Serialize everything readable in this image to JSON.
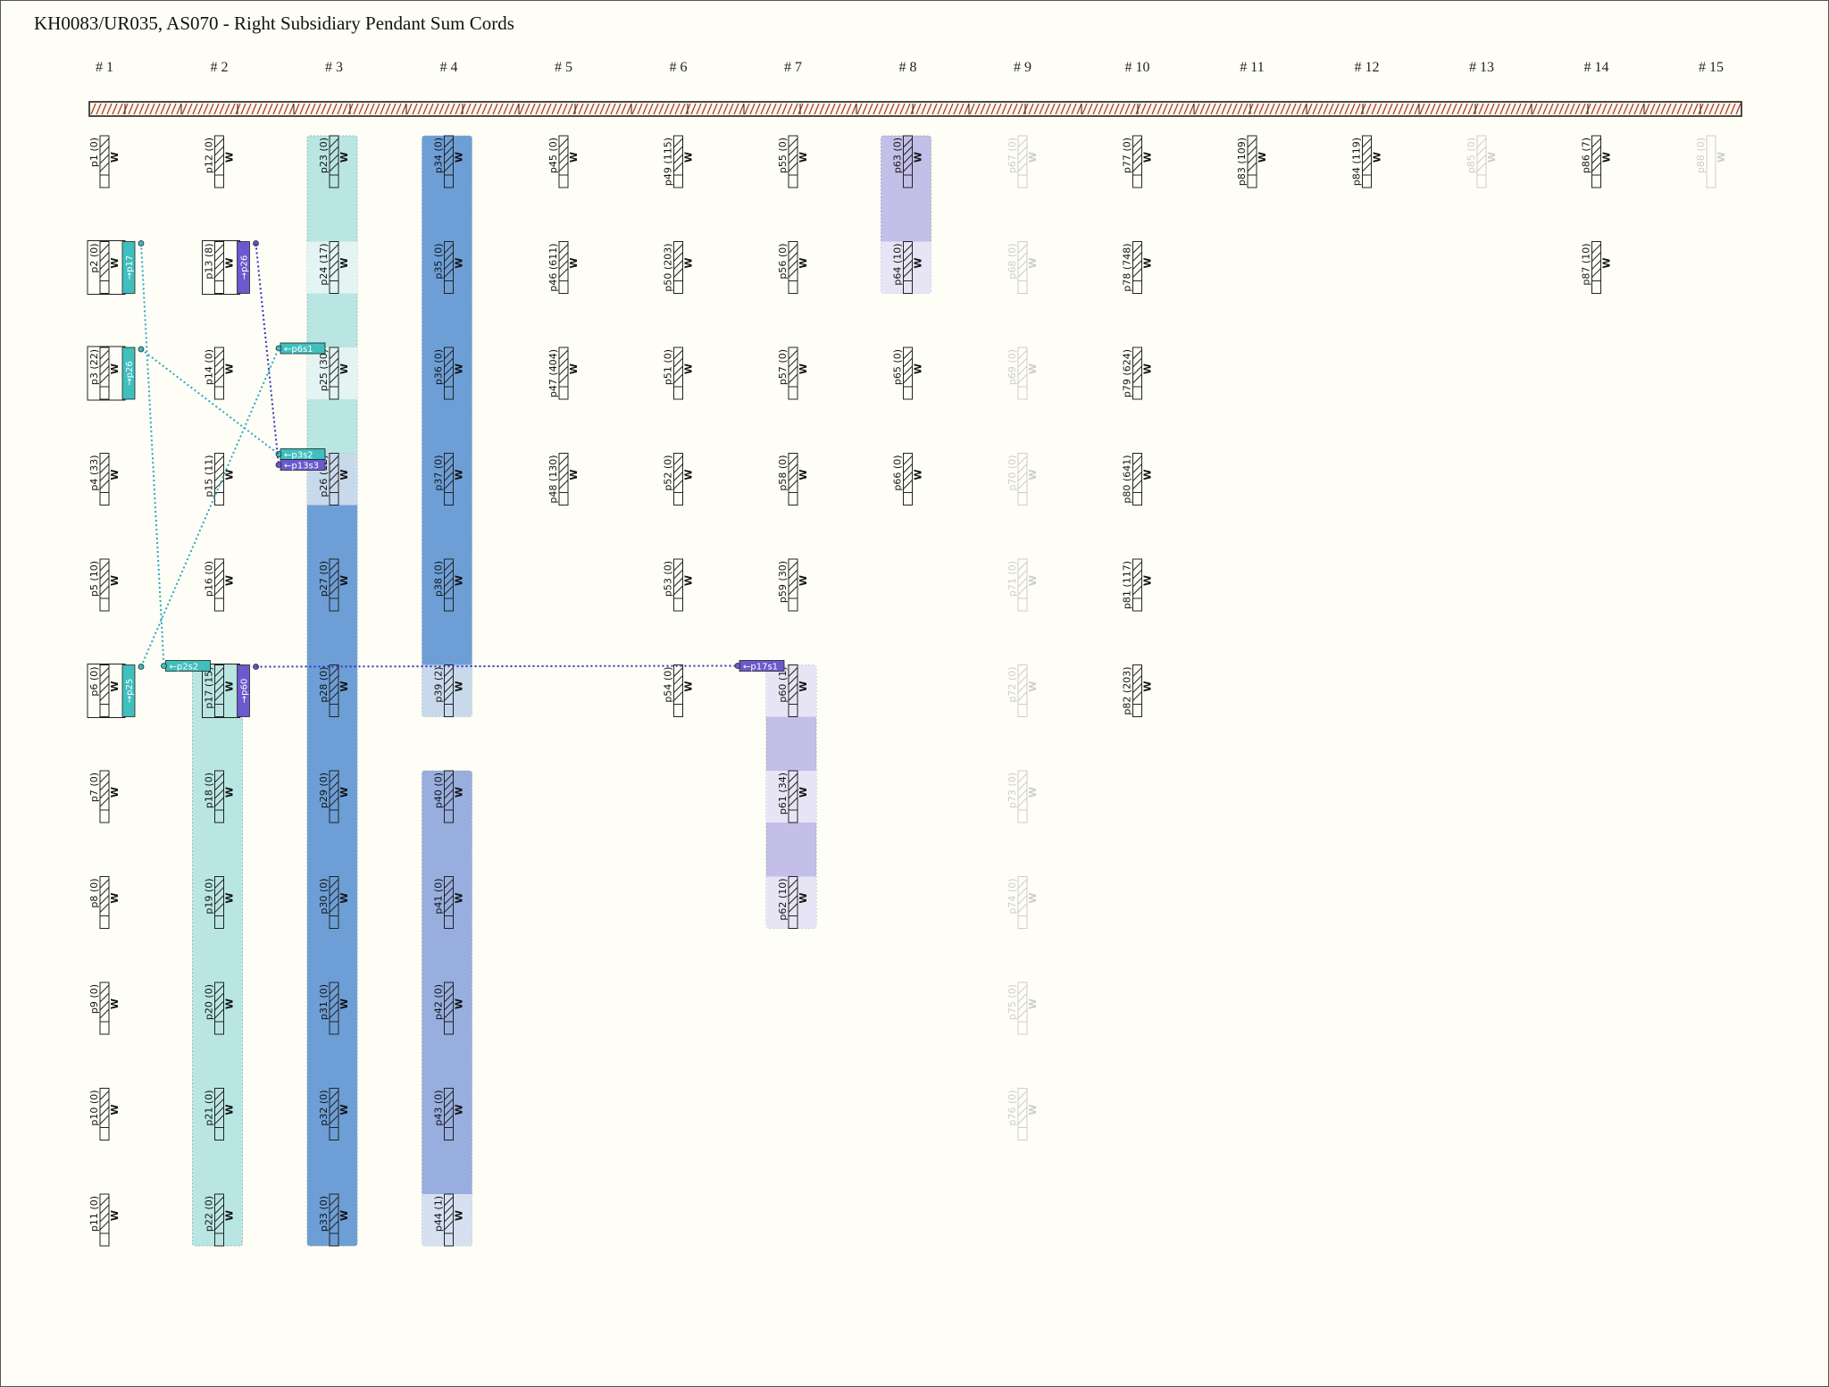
{
  "title": "KH0083/UR035, AS070 - Right Subsidiary Pendant Sum Cords",
  "columns": [
    {
      "label": "# 1",
      "cords": [
        {
          "l": "p1 (0)"
        },
        {
          "l": "p2 (0)",
          "t": "→p17",
          "tc": "teal"
        },
        {
          "l": "p3 (22)",
          "t": "→p26",
          "tc": "teal"
        },
        {
          "l": "p4 (33)"
        },
        {
          "l": "p5 (10)"
        },
        {
          "l": "p6 (0)",
          "t": "→p25",
          "tc": "teal"
        },
        {
          "l": "p7 (0)"
        },
        {
          "l": "p8 (0)"
        },
        {
          "l": "p9 (0)"
        },
        {
          "l": "p10 (0)"
        },
        {
          "l": "p11 (0)"
        }
      ]
    },
    {
      "label": "# 2",
      "cords": [
        {
          "l": "p12 (0)"
        },
        {
          "l": "p13 (8)",
          "t": "→p26",
          "tc": "purple"
        },
        {
          "l": "p14 (0)"
        },
        {
          "l": "p15 (11)"
        },
        {
          "l": "p16 (0)"
        },
        {
          "l": "p17 (15)",
          "t": "→p60",
          "tc": "purple"
        },
        {
          "l": "p18 (0)"
        },
        {
          "l": "p19 (0)"
        },
        {
          "l": "p20 (0)"
        },
        {
          "l": "p21 (0)"
        },
        {
          "l": "p22 (0)"
        }
      ]
    },
    {
      "label": "# 3",
      "cords": [
        {
          "l": "p23 (0)"
        },
        {
          "l": "p24 (17)"
        },
        {
          "l": "p25 (30)"
        },
        {
          "l": "p26 (12)"
        },
        {
          "l": "p27 (0)"
        },
        {
          "l": "p28 (0)"
        },
        {
          "l": "p29 (0)"
        },
        {
          "l": "p30 (0)"
        },
        {
          "l": "p31 (0)"
        },
        {
          "l": "p32 (0)"
        },
        {
          "l": "p33 (0)"
        }
      ]
    },
    {
      "label": "# 4",
      "cords": [
        {
          "l": "p34 (0)"
        },
        {
          "l": "p35 (0)"
        },
        {
          "l": "p36 (0)"
        },
        {
          "l": "p37 (0)"
        },
        {
          "l": "p38 (0)"
        },
        {
          "l": "p39 (2)"
        },
        {
          "l": "p40 (0)"
        },
        {
          "l": "p41 (0)"
        },
        {
          "l": "p42 (0)"
        },
        {
          "l": "p43 (0)"
        },
        {
          "l": "p44 (1)"
        }
      ]
    },
    {
      "label": "# 5",
      "cords": [
        {
          "l": "p45 (0)"
        },
        {
          "l": "p46 (611)"
        },
        {
          "l": "p47 (404)"
        },
        {
          "l": "p48 (130)"
        }
      ]
    },
    {
      "label": "# 6",
      "cords": [
        {
          "l": "p49 (115)"
        },
        {
          "l": "p50 (203)"
        },
        {
          "l": "p51 (0)"
        },
        {
          "l": "p52 (0)"
        },
        {
          "l": "p53 (0)"
        },
        {
          "l": "p54 (0)"
        }
      ]
    },
    {
      "label": "# 7",
      "cords": [
        {
          "l": "p55 (0)"
        },
        {
          "l": "p56 (0)"
        },
        {
          "l": "p57 (0)"
        },
        {
          "l": "p58 (0)"
        },
        {
          "l": "p59 (30)"
        },
        {
          "l": "p60 (1)"
        },
        {
          "l": "p61 (34)",
          "r": 7
        },
        {
          "l": "p62 (10)",
          "r": 8
        }
      ]
    },
    {
      "label": "# 8",
      "cords": [
        {
          "l": "p63 (0)"
        },
        {
          "l": "p64 (10)"
        },
        {
          "l": "p65 (0)"
        },
        {
          "l": "p66 (0)"
        }
      ]
    },
    {
      "label": "# 9",
      "faded": true,
      "cords": [
        {
          "l": "p67 (0)"
        },
        {
          "l": "p68 (0)"
        },
        {
          "l": "p69 (0)"
        },
        {
          "l": "p70 (0)"
        },
        {
          "l": "p71 (0)"
        },
        {
          "l": "p72 (0)"
        },
        {
          "l": "p73 (0)"
        },
        {
          "l": "p74 (0)"
        },
        {
          "l": "p75 (0)"
        },
        {
          "l": "p76 (0)"
        }
      ]
    },
    {
      "label": "# 10",
      "cords": [
        {
          "l": "p77 (0)"
        },
        {
          "l": "p78 (748)"
        },
        {
          "l": "p79 (624)"
        },
        {
          "l": "p80 (641)"
        },
        {
          "l": "p81 (117)"
        },
        {
          "l": "p82 (203)"
        }
      ]
    },
    {
      "label": "# 11",
      "cords": [
        {
          "l": "p83 (109)"
        }
      ]
    },
    {
      "label": "# 12",
      "cords": [
        {
          "l": "p84 (119)"
        }
      ]
    },
    {
      "label": "# 13",
      "faded": true,
      "cords": [
        {
          "l": "p85 (0)"
        }
      ]
    },
    {
      "label": "# 14",
      "cords": [
        {
          "l": "p86 (7)"
        },
        {
          "l": "p87 (10)"
        }
      ]
    },
    {
      "label": "# 15",
      "faded": true,
      "blank": true,
      "cords": [
        {
          "l": "p88 (0)"
        }
      ]
    }
  ],
  "w_label": "W",
  "bands": [
    {
      "col": 3,
      "from": 1,
      "to": 11,
      "color": "#b9e6e2"
    },
    {
      "col": 3,
      "from": 4,
      "to": 11,
      "color": "#6d9fd6"
    },
    {
      "col": 2,
      "from": 6,
      "to": 11,
      "color": "#b9e6e2"
    },
    {
      "col": 4,
      "from": 1,
      "to": 6,
      "color": "#6d9fd6"
    },
    {
      "col": 4,
      "from": 7,
      "to": 11,
      "color": "#97aede"
    },
    {
      "col": 7,
      "from": 6,
      "to": 8,
      "color": "#c3bfe8"
    },
    {
      "col": 8,
      "from": 1,
      "to": 2,
      "color": "#c3bfe8"
    }
  ],
  "light_cells": [
    {
      "col": 3,
      "row": 2,
      "color": "#e3f4f2"
    },
    {
      "col": 3,
      "row": 3,
      "color": "#e3f4f2"
    },
    {
      "col": 3,
      "row": 4,
      "color": "#c9d9ec"
    },
    {
      "col": 4,
      "row": 6,
      "color": "#c9d9ec"
    },
    {
      "col": 4,
      "row": 11,
      "color": "#d7e0f1"
    },
    {
      "col": 7,
      "row": 6,
      "color": "#e7e5f5"
    },
    {
      "col": 7,
      "row": 7,
      "color": "#e7e5f5"
    },
    {
      "col": 7,
      "row": 8,
      "color": "#e7e5f5"
    },
    {
      "col": 8,
      "row": 2,
      "color": "#e7e5f5"
    }
  ],
  "incoming_tags": [
    {
      "col": 3,
      "row": 3,
      "text": "←p6s1",
      "color": "#3fbfbd"
    },
    {
      "col": 3,
      "row": 4,
      "text": "←p3s2",
      "color": "#3fbfbd",
      "slot": 0
    },
    {
      "col": 3,
      "row": 4,
      "text": "←p13s3",
      "color": "#6a5acd",
      "slot": 1
    },
    {
      "col": 2,
      "row": 6,
      "text": "←p2s2",
      "color": "#3fbfbd"
    },
    {
      "col": 7,
      "row": 6,
      "text": "←p17s1",
      "color": "#6a5acd"
    }
  ],
  "links": [
    {
      "from": [
        1,
        2
      ],
      "to": [
        2,
        6
      ],
      "color": "#2aa8c0"
    },
    {
      "from": [
        1,
        3
      ],
      "to": [
        3,
        4
      ],
      "slot": 0,
      "color": "#2aa8c0"
    },
    {
      "from": [
        1,
        6
      ],
      "to": [
        3,
        3
      ],
      "color": "#2aa8c0"
    },
    {
      "from": [
        2,
        2
      ],
      "to": [
        3,
        4
      ],
      "slot": 1,
      "color": "#3030c0"
    },
    {
      "from": [
        2,
        6
      ],
      "to": [
        7,
        6
      ],
      "color": "#3030c0"
    }
  ],
  "colors": {
    "teal": "#3fbfbd",
    "purple": "#6a5acd",
    "knot": "#b03a2e",
    "faded": "#cccccc"
  }
}
